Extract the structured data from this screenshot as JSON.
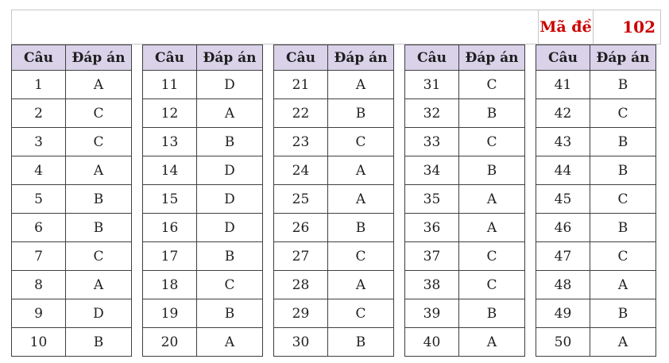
{
  "exam": {
    "code_label": "Mã đề",
    "code_value": "102"
  },
  "table": {
    "question_header": "Câu",
    "answer_header": "Đáp án",
    "groups": [
      {
        "rows": [
          {
            "q": "1",
            "a": "A"
          },
          {
            "q": "2",
            "a": "C"
          },
          {
            "q": "3",
            "a": "C"
          },
          {
            "q": "4",
            "a": "A"
          },
          {
            "q": "5",
            "a": "B"
          },
          {
            "q": "6",
            "a": "B"
          },
          {
            "q": "7",
            "a": "C"
          },
          {
            "q": "8",
            "a": "A"
          },
          {
            "q": "9",
            "a": "D"
          },
          {
            "q": "10",
            "a": "B"
          }
        ]
      },
      {
        "rows": [
          {
            "q": "11",
            "a": "D"
          },
          {
            "q": "12",
            "a": "A"
          },
          {
            "q": "13",
            "a": "B"
          },
          {
            "q": "14",
            "a": "D"
          },
          {
            "q": "15",
            "a": "D"
          },
          {
            "q": "16",
            "a": "D"
          },
          {
            "q": "17",
            "a": "B"
          },
          {
            "q": "18",
            "a": "C"
          },
          {
            "q": "19",
            "a": "B"
          },
          {
            "q": "20",
            "a": "A"
          }
        ]
      },
      {
        "rows": [
          {
            "q": "21",
            "a": "A"
          },
          {
            "q": "22",
            "a": "B"
          },
          {
            "q": "23",
            "a": "C"
          },
          {
            "q": "24",
            "a": "A"
          },
          {
            "q": "25",
            "a": "A"
          },
          {
            "q": "26",
            "a": "B"
          },
          {
            "q": "27",
            "a": "C"
          },
          {
            "q": "28",
            "a": "A"
          },
          {
            "q": "29",
            "a": "C"
          },
          {
            "q": "30",
            "a": "B"
          }
        ]
      },
      {
        "rows": [
          {
            "q": "31",
            "a": "C"
          },
          {
            "q": "32",
            "a": "B"
          },
          {
            "q": "33",
            "a": "C"
          },
          {
            "q": "34",
            "a": "B"
          },
          {
            "q": "35",
            "a": "A"
          },
          {
            "q": "36",
            "a": "A"
          },
          {
            "q": "37",
            "a": "C"
          },
          {
            "q": "38",
            "a": "C"
          },
          {
            "q": "39",
            "a": "B"
          },
          {
            "q": "40",
            "a": "A"
          }
        ]
      },
      {
        "rows": [
          {
            "q": "41",
            "a": "B"
          },
          {
            "q": "42",
            "a": "C"
          },
          {
            "q": "43",
            "a": "B"
          },
          {
            "q": "44",
            "a": "B"
          },
          {
            "q": "45",
            "a": "C"
          },
          {
            "q": "46",
            "a": "B"
          },
          {
            "q": "47",
            "a": "C"
          },
          {
            "q": "48",
            "a": "A"
          },
          {
            "q": "49",
            "a": "B"
          },
          {
            "q": "50",
            "a": "A"
          }
        ]
      }
    ]
  },
  "colors": {
    "accent_red": "#cc0000",
    "header_background": "#d9d2e9",
    "cell_border": "#3f3f3f",
    "banner_border": "#c6c6c6",
    "text": "#1f1f1f"
  }
}
